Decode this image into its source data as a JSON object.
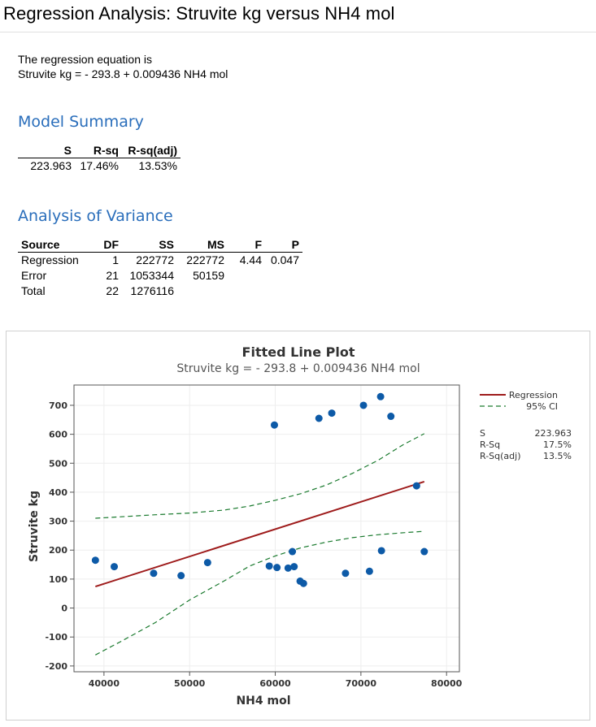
{
  "page_title": "Regression Analysis: Struvite kg versus NH4 mol",
  "equation": {
    "intro": "The regression equation is",
    "text": "Struvite kg = - 293.8 + 0.009436 NH4 mol"
  },
  "model_summary": {
    "heading": "Model Summary",
    "headers": [
      "S",
      "R-sq",
      "R-sq(adj)"
    ],
    "values": [
      "223.963",
      "17.46%",
      "13.53%"
    ]
  },
  "anova": {
    "heading": "Analysis of Variance",
    "headers": [
      "Source",
      "DF",
      "SS",
      "MS",
      "F",
      "P"
    ],
    "rows": [
      [
        "Regression",
        "1",
        "222772",
        "222772",
        "4.44",
        "0.047"
      ],
      [
        "Error",
        "21",
        "1053344",
        "50159",
        "",
        ""
      ],
      [
        "Total",
        "22",
        "1276116",
        "",
        "",
        ""
      ]
    ]
  },
  "chart_data": {
    "type": "scatter",
    "title": "Fitted Line Plot",
    "subtitle": "Struvite kg = - 293.8 + 0.009436 NH4 mol",
    "xlabel": "NH4 mol",
    "ylabel": "Struvite kg",
    "xlim": [
      36500,
      81500
    ],
    "ylim": [
      -220,
      770
    ],
    "x_ticks": [
      40000,
      50000,
      60000,
      70000,
      80000
    ],
    "y_ticks": [
      -200,
      -100,
      0,
      100,
      200,
      300,
      400,
      500,
      600,
      700
    ],
    "x_tick_labels": [
      "40000",
      "50000",
      "60000",
      "70000",
      "80000"
    ],
    "y_tick_labels": [
      "-200",
      "-100",
      "0",
      "100",
      "200",
      "300",
      "400",
      "500",
      "600",
      "700"
    ],
    "grid": true,
    "legend_placement": "right",
    "legend": [
      {
        "name": "Regression",
        "color": "#9e1b1b",
        "style": "solid"
      },
      {
        "name": "95% CI",
        "color": "#1a7a2e",
        "style": "dashed"
      }
    ],
    "stats_labels": [
      "S",
      "R-Sq",
      "R-Sq(adj)"
    ],
    "stats_values": [
      "223.963",
      "17.5%",
      "13.5%"
    ],
    "regression": {
      "intercept": -293.8,
      "slope": 0.009436,
      "x_range": [
        39000,
        77400
      ]
    },
    "ci_upper": [
      [
        39000,
        310
      ],
      [
        42000,
        315
      ],
      [
        46000,
        322
      ],
      [
        50000,
        328
      ],
      [
        54000,
        338
      ],
      [
        57000,
        352
      ],
      [
        60000,
        372
      ],
      [
        63000,
        395
      ],
      [
        66000,
        425
      ],
      [
        69000,
        465
      ],
      [
        72000,
        510
      ],
      [
        75000,
        565
      ],
      [
        77400,
        602
      ]
    ],
    "ci_lower": [
      [
        39000,
        -162
      ],
      [
        42000,
        -115
      ],
      [
        46000,
        -50
      ],
      [
        50000,
        28
      ],
      [
        54000,
        93
      ],
      [
        57000,
        145
      ],
      [
        60000,
        180
      ],
      [
        63000,
        208
      ],
      [
        66000,
        228
      ],
      [
        69000,
        243
      ],
      [
        72000,
        253
      ],
      [
        75000,
        260
      ],
      [
        77400,
        265
      ]
    ],
    "points": [
      [
        39000,
        165
      ],
      [
        41200,
        143
      ],
      [
        45800,
        120
      ],
      [
        49000,
        112
      ],
      [
        52100,
        157
      ],
      [
        59300,
        145
      ],
      [
        60200,
        140
      ],
      [
        61500,
        138
      ],
      [
        62000,
        195
      ],
      [
        62200,
        143
      ],
      [
        62900,
        93
      ],
      [
        63300,
        85
      ],
      [
        68200,
        120
      ],
      [
        71000,
        127
      ],
      [
        72400,
        198
      ],
      [
        77400,
        195
      ],
      [
        76500,
        422
      ],
      [
        59900,
        632
      ],
      [
        65100,
        655
      ],
      [
        66600,
        673
      ],
      [
        70300,
        700
      ],
      [
        72300,
        730
      ],
      [
        73500,
        662
      ]
    ],
    "colors": {
      "points": "#0d5aa7",
      "regression": "#9e1b1b",
      "ci": "#1a7a2e"
    }
  }
}
